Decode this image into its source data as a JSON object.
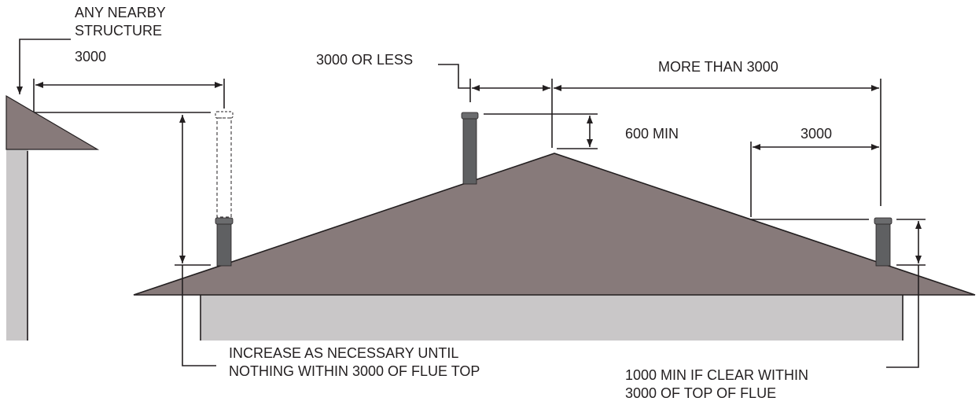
{
  "colors": {
    "roof": "#877a7a",
    "wall": "#c9c7c8",
    "flue": "#5f6062",
    "line": "#231f20"
  },
  "labels": {
    "nearby_line1": "ANY NEARBY",
    "nearby_line2": "STRUCTURE",
    "left_distance": "3000",
    "center_distance": "3000 OR LESS",
    "ridge_distance": "MORE THAN 3000",
    "ridge_height": "600 MIN",
    "right_distance": "3000",
    "left_note_line1": "INCREASE AS NECESSARY UNTIL",
    "left_note_line2": "NOTHING WITHIN 3000 OF FLUE TOP",
    "right_note_line1": "1000 MIN IF CLEAR WITHIN",
    "right_note_line2": "3000 OF TOP OF FLUE"
  }
}
